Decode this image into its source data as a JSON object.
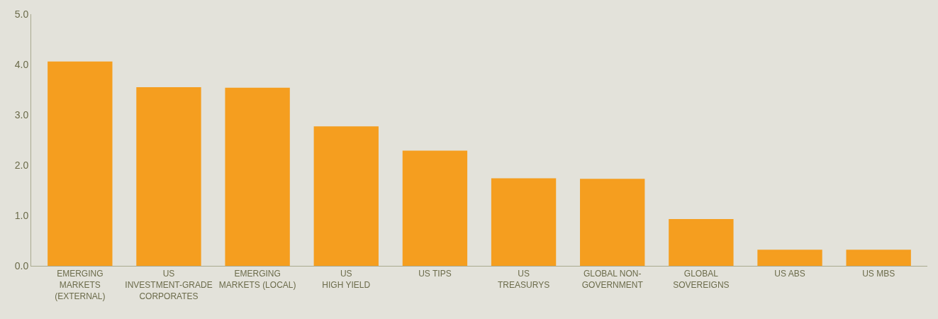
{
  "chart_data": {
    "type": "bar",
    "categories": [
      "EMERGING\nMARKETS\n(EXTERNAL)",
      "US\nINVESTMENT-GRADE\nCORPORATES",
      "EMERGING\nMARKETS (LOCAL)",
      "US\nHIGH YIELD",
      "US TIPS",
      "US\nTREASURYS",
      "GLOBAL NON-\nGOVERNMENT",
      "GLOBAL\nSOVEREIGNS",
      "US ABS",
      "US MBS"
    ],
    "values": [
      4.06,
      3.55,
      3.54,
      2.77,
      2.29,
      1.74,
      1.73,
      0.93,
      0.32,
      0.32
    ],
    "color": "#f59e1f",
    "ylim": [
      0,
      5
    ],
    "yticks": [
      {
        "value": 0,
        "label": "0.0"
      },
      {
        "value": 1,
        "label": "1.0"
      },
      {
        "value": 2,
        "label": "2.0"
      },
      {
        "value": 3,
        "label": "3.0"
      },
      {
        "value": 4,
        "label": "4.0"
      },
      {
        "value": 5,
        "label": "5.0"
      }
    ],
    "grid": false
  }
}
